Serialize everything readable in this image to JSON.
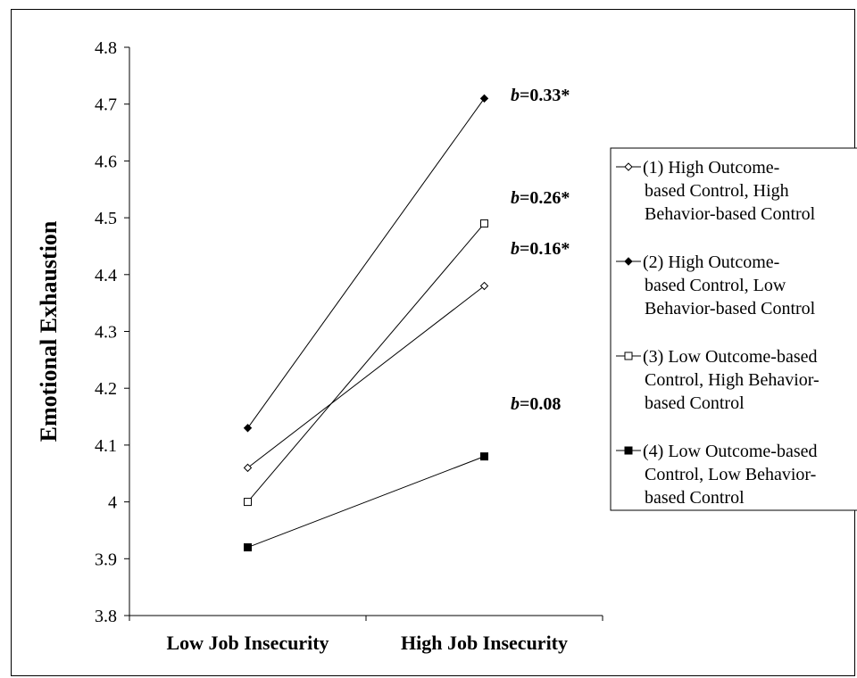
{
  "chart_data": {
    "type": "line",
    "title": "",
    "xlabel": "",
    "ylabel": "Emotional Exhaustion",
    "ylim": [
      3.8,
      4.8
    ],
    "yticks": [
      "3.8",
      "3.9",
      "4",
      "4.1",
      "4.2",
      "4.3",
      "4.4",
      "4.5",
      "4.6",
      "4.7",
      "4.8"
    ],
    "categories": [
      "Low Job Insecurity",
      "High Job Insecurity"
    ],
    "grid": false,
    "legend_position": "right",
    "series": [
      {
        "name": "(1) High Outcome-based Control, High Behavior-based Control",
        "legend_lines": [
          "(1) High Outcome-",
          "based Control, High",
          "Behavior-based Control"
        ],
        "marker": "diamond-open",
        "values": [
          4.06,
          4.38
        ],
        "annotation_b": "b",
        "annotation_value": "=0.16*"
      },
      {
        "name": "(2) High Outcome-based Control, Low Behavior-based Control",
        "legend_lines": [
          "(2) High Outcome-",
          "based Control, Low",
          "Behavior-based Control"
        ],
        "marker": "diamond-filled",
        "values": [
          4.13,
          4.71
        ],
        "annotation_b": "b",
        "annotation_value": "=0.33*"
      },
      {
        "name": "(3) Low Outcome-based Control, High Behavior-based Control",
        "legend_lines": [
          "(3) Low Outcome-based",
          "Control, High Behavior-",
          "based Control"
        ],
        "marker": "square-open",
        "values": [
          4.0,
          4.49
        ],
        "annotation_b": "b",
        "annotation_value": "=0.26*"
      },
      {
        "name": "(4) Low Outcome-based Control, Low Behavior-based Control",
        "legend_lines": [
          "(4) Low Outcome-based",
          "Control, Low Behavior-",
          "based Control"
        ],
        "marker": "square-filled",
        "values": [
          3.92,
          4.08
        ],
        "annotation_b": "b",
        "annotation_value": "=0.08"
      }
    ]
  }
}
